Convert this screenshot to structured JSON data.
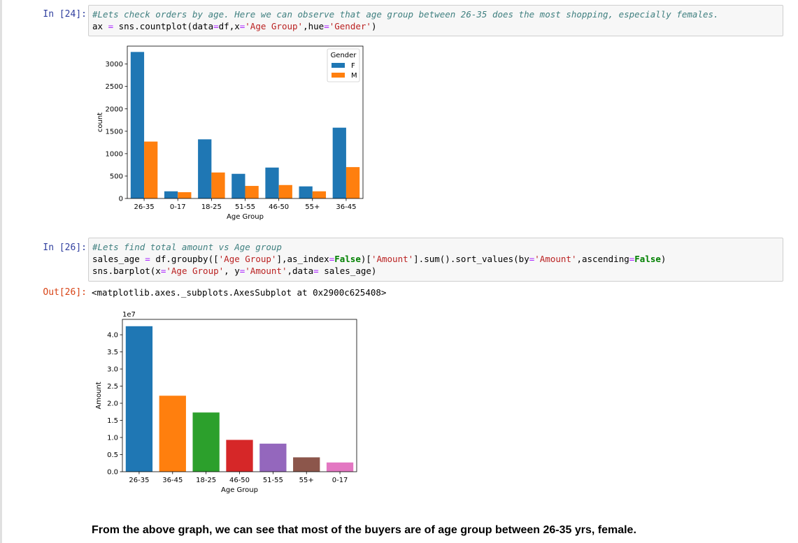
{
  "cell1": {
    "prompt": "In [24]:",
    "comment": "#Lets check orders by age. Here we can observe that age group between 26-35 does the most shopping, especially females.",
    "code": {
      "t1": "ax ",
      "op1": "=",
      "t2": " sns.countplot(data",
      "op2": "=",
      "t3": "df,x",
      "op3": "=",
      "s1": "'Age Group'",
      "t4": ",hue",
      "op4": "=",
      "s2": "'Gender'",
      "t5": ")"
    }
  },
  "cell2": {
    "prompt": "In [26]:",
    "comment": "#Lets find total amount vs Age group",
    "line2": {
      "t1": "sales_age ",
      "op1": "=",
      "t2": " df.groupby([",
      "s1": "'Age Group'",
      "t3": "],as_index",
      "op2": "=",
      "k1": "False",
      "t4": ")[",
      "s2": "'Amount'",
      "t5": "].sum().sort_values(by",
      "op3": "=",
      "s3": "'Amount'",
      "t6": ",ascending",
      "op4": "=",
      "k2": "False",
      "t7": ")"
    },
    "line3": {
      "t1": "sns.barplot(x",
      "op1": "=",
      "s1": "'Age Group'",
      "t2": ", y",
      "op2": "=",
      "s2": "'Amount'",
      "t3": ",data",
      "op3": "=",
      "t4": " sales_age)"
    }
  },
  "out1": {
    "prompt": "Out[26]:",
    "text": "<matplotlib.axes._subplots.AxesSubplot at 0x2900c625408>"
  },
  "conclusion": "From the above graph, we can see that most of the buyers are of age group between 26-35 yrs, female.",
  "chart_data": [
    {
      "type": "bar",
      "categories": [
        "26-35",
        "0-17",
        "18-25",
        "51-55",
        "46-50",
        "55+",
        "36-45"
      ],
      "series": [
        {
          "name": "F",
          "color": "#1f77b4",
          "values": [
            3270,
            160,
            1320,
            550,
            690,
            270,
            1580
          ]
        },
        {
          "name": "M",
          "color": "#ff7f0e",
          "values": [
            1270,
            140,
            580,
            280,
            300,
            160,
            700
          ]
        }
      ],
      "xlabel": "Age Group",
      "ylabel": "count",
      "ylim": [
        0,
        3400
      ],
      "yticks": [
        0,
        500,
        1000,
        1500,
        2000,
        2500,
        3000
      ],
      "legend": {
        "title": "Gender",
        "position": "top-right"
      },
      "grid": false
    },
    {
      "type": "bar",
      "categories": [
        "26-35",
        "36-45",
        "18-25",
        "46-50",
        "51-55",
        "55+",
        "0-17"
      ],
      "values": [
        4.25,
        2.22,
        1.73,
        0.93,
        0.82,
        0.42,
        0.27
      ],
      "colors": [
        "#1f77b4",
        "#ff7f0e",
        "#2ca02c",
        "#d62728",
        "#9467bd",
        "#8c564b",
        "#e377c2"
      ],
      "offset_text": "1e7",
      "xlabel": "Age Group",
      "ylabel": "Amount",
      "ylim": [
        0,
        4.45
      ],
      "yticks": [
        0,
        0.5,
        1.0,
        1.5,
        2.0,
        2.5,
        3.0,
        3.5,
        4.0
      ],
      "ytick_labels": [
        "0.0",
        "0.5",
        "1.0",
        "1.5",
        "2.0",
        "2.5",
        "3.0",
        "3.5",
        "4.0"
      ],
      "grid": false
    }
  ]
}
